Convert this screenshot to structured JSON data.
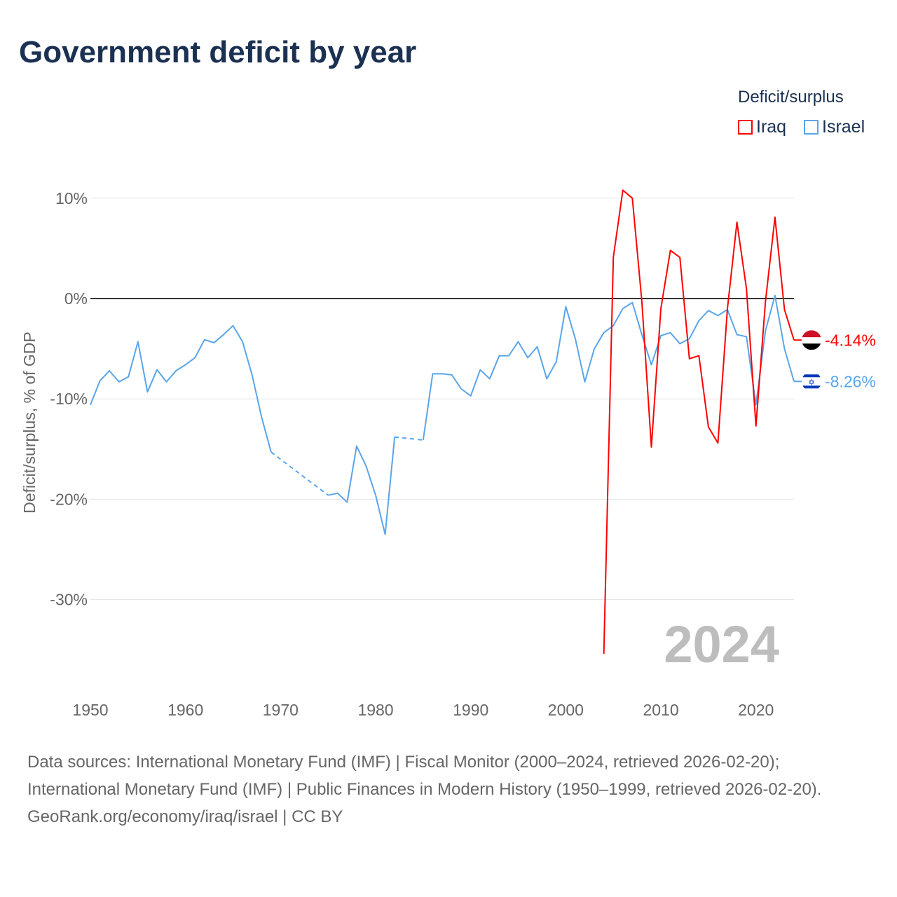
{
  "title": "Government deficit by year",
  "legend": {
    "title": "Deficit/surplus",
    "items": [
      {
        "name": "Iraq",
        "color": "#ff0000"
      },
      {
        "name": "Israel",
        "color": "#5aa5ea"
      }
    ]
  },
  "year_label": "2024",
  "end_labels": {
    "iraq": "-4.14%",
    "israel": "-8.26%"
  },
  "footer": {
    "sources": "Data sources: International Monetary Fund (IMF) | Fiscal Monitor (2000–2024, retrieved 2026-02-20); International Monetary Fund (IMF) | Public Finances in Modern History (1950–1999, retrieved 2026-02-20).",
    "credit": "GeoRank.org/economy/iraq/israel | CC BY"
  },
  "chart_data": {
    "type": "line",
    "title": "Government deficit by year",
    "xlabel": "",
    "ylabel": "Deficit/surplus, % of GDP",
    "xlim": [
      1950,
      2024
    ],
    "ylim": [
      -36,
      11
    ],
    "xticks": [
      1950,
      1960,
      1970,
      1980,
      1990,
      2000,
      2010,
      2020
    ],
    "xtick_labels": [
      "1950",
      "1960",
      "1970",
      "1980",
      "1990",
      "2000",
      "2010",
      "2020"
    ],
    "yticks": [
      10,
      0,
      -10,
      -20,
      -30
    ],
    "ytick_labels": [
      "10%",
      "0%",
      "-10%",
      "-20%",
      "-30%"
    ],
    "grid": true,
    "legend_position": "top-right",
    "series": [
      {
        "name": "Israel",
        "color": "#5aa5ea",
        "start": 1950,
        "values": [
          -10.6,
          -8.2,
          -7.2,
          -8.3,
          -7.8,
          -4.3,
          -9.3,
          -7.1,
          -8.3,
          -7.2,
          -6.6,
          -5.9,
          -4.1,
          -4.4,
          -3.6,
          -2.7,
          -4.3,
          -7.6,
          -11.8,
          -15.3,
          null,
          null,
          null,
          null,
          null,
          -19.6,
          -19.4,
          -20.3,
          -14.7,
          -16.7,
          -19.6,
          -23.5,
          -13.8,
          null,
          null,
          -14.1,
          -7.5,
          -7.5,
          -7.6,
          -9.0,
          -9.7,
          -7.1,
          -8.0,
          -5.7,
          -5.7,
          -4.3,
          -5.9,
          -4.8,
          -8.0,
          -6.3,
          -0.8,
          -4.0,
          -8.3,
          -5.0,
          -3.4,
          -2.7,
          -1.0,
          -0.4,
          -3.6,
          -6.6,
          -3.7,
          -3.4,
          -4.5,
          -4.0,
          -2.2,
          -1.2,
          -1.7,
          -1.1,
          -3.6,
          -3.8,
          -10.6,
          -3.2,
          0.3,
          -5.0,
          -8.26
        ]
      },
      {
        "name": "Iraq",
        "color": "#ff0000",
        "start": 2004,
        "values": [
          -35.4,
          4.1,
          10.8,
          10.0,
          -0.3,
          -14.8,
          -1.0,
          4.8,
          4.1,
          -6.0,
          -5.7,
          -12.8,
          -14.4,
          -1.0,
          7.6,
          1.0,
          -12.7,
          -0.3,
          8.1,
          -1.1,
          -4.14
        ]
      }
    ]
  }
}
